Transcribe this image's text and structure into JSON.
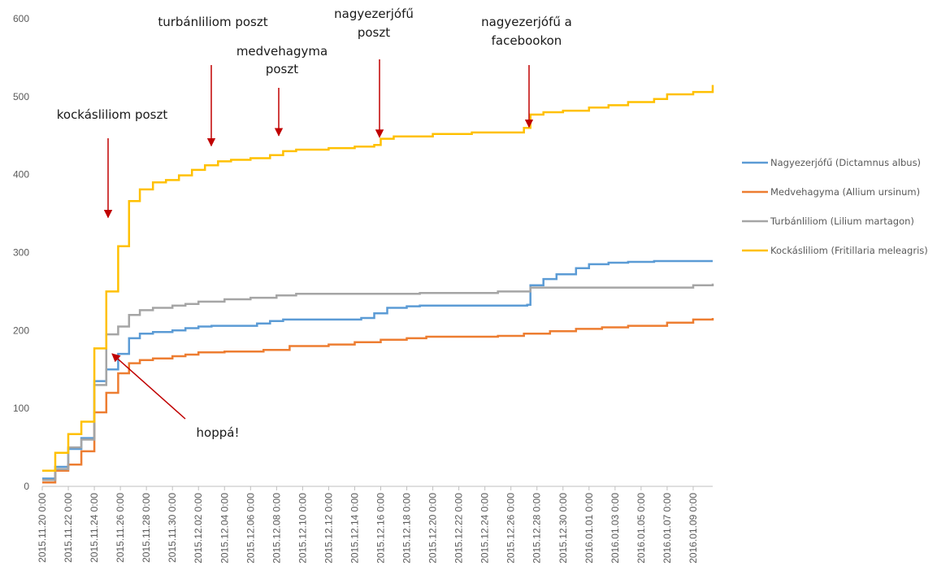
{
  "chart_data": {
    "type": "line",
    "step": true,
    "ylim": [
      0,
      600
    ],
    "yticks": [
      0,
      100,
      200,
      300,
      400,
      500,
      600
    ],
    "xlim": [
      "2015.11.20 0:00",
      "2016.01.10 12:00"
    ],
    "xticks": [
      "2015.11.20 0:00",
      "2015.11.22 0:00",
      "2015.11.24 0:00",
      "2015.11.26 0:00",
      "2015.11.28 0:00",
      "2015.11.30 0:00",
      "2015.12.02 0:00",
      "2015.12.04 0:00",
      "2015.12.06 0:00",
      "2015.12.08 0:00",
      "2015.12.10 0:00",
      "2015.12.12 0:00",
      "2015.12.14 0:00",
      "2015.12.16 0:00",
      "2015.12.18 0:00",
      "2015.12.20 0:00",
      "2015.12.22 0:00",
      "2015.12.24 0:00",
      "2015.12.26 0:00",
      "2015.12.28 0:00",
      "2015.12.30 0:00",
      "2016.01.01 0:00",
      "2016.01.03 0:00",
      "2016.01.05 0:00",
      "2016.01.07 0:00",
      "2016.01.09 0:00"
    ],
    "grid": false,
    "legend_position": "right",
    "series": [
      {
        "name": "Nagyezerjófű (Dictamnus albus)",
        "color": "#5B9BD5",
        "points": [
          [
            "2015.11.20 0:00",
            10
          ],
          [
            "2015.11.21 0:00",
            25
          ],
          [
            "2015.11.22 0:00",
            48
          ],
          [
            "2015.11.23 0:00",
            62
          ],
          [
            "2015.11.24 0:00",
            135
          ],
          [
            "2015.11.24 22:00",
            150
          ],
          [
            "2015.11.25 20:00",
            170
          ],
          [
            "2015.11.26 16:00",
            190
          ],
          [
            "2015.11.27 12:00",
            196
          ],
          [
            "2015.11.28 12:00",
            198
          ],
          [
            "2015.11.30 0:00",
            200
          ],
          [
            "2015.12.01 0:00",
            203
          ],
          [
            "2015.12.02 0:00",
            205
          ],
          [
            "2015.12.03 0:00",
            206
          ],
          [
            "2015.12.05 12:00",
            206
          ],
          [
            "2015.12.06 12:00",
            209
          ],
          [
            "2015.12.07 12:00",
            212
          ],
          [
            "2015.12.08 12:00",
            214
          ],
          [
            "2015.12.14 12:00",
            216
          ],
          [
            "2015.12.15 12:00",
            222
          ],
          [
            "2015.12.16 12:00",
            229
          ],
          [
            "2015.12.18 0:00",
            231
          ],
          [
            "2015.12.19 0:00",
            232
          ],
          [
            "2015.12.27 6:00",
            233
          ],
          [
            "2015.12.27 12:00",
            258
          ],
          [
            "2015.12.28 12:00",
            266
          ],
          [
            "2015.12.29 12:00",
            272
          ],
          [
            "2015.12.31 0:00",
            280
          ],
          [
            "2016.01.01 0:00",
            285
          ],
          [
            "2016.01.02 12:00",
            287
          ],
          [
            "2016.01.04 0:00",
            288
          ],
          [
            "2016.01.06 0:00",
            289
          ],
          [
            "2016.01.10 12:00",
            289
          ]
        ]
      },
      {
        "name": "Medvehagyma (Allium ursinum)",
        "color": "#ED7D31",
        "points": [
          [
            "2015.11.20 0:00",
            5
          ],
          [
            "2015.11.21 0:00",
            20
          ],
          [
            "2015.11.22 0:00",
            28
          ],
          [
            "2015.11.23 0:00",
            45
          ],
          [
            "2015.11.24 0:00",
            95
          ],
          [
            "2015.11.24 22:00",
            120
          ],
          [
            "2015.11.25 20:00",
            145
          ],
          [
            "2015.11.26 16:00",
            158
          ],
          [
            "2015.11.27 12:00",
            162
          ],
          [
            "2015.11.28 12:00",
            164
          ],
          [
            "2015.11.30 0:00",
            167
          ],
          [
            "2015.12.01 0:00",
            169
          ],
          [
            "2015.12.02 0:00",
            172
          ],
          [
            "2015.12.04 0:00",
            173
          ],
          [
            "2015.12.07 0:00",
            175
          ],
          [
            "2015.12.09 0:00",
            180
          ],
          [
            "2015.12.12 0:00",
            182
          ],
          [
            "2015.12.14 0:00",
            185
          ],
          [
            "2015.12.16 0:00",
            188
          ],
          [
            "2015.12.18 0:00",
            190
          ],
          [
            "2015.12.19 12:00",
            192
          ],
          [
            "2015.12.25 0:00",
            193
          ],
          [
            "2015.12.27 0:00",
            196
          ],
          [
            "2015.12.29 0:00",
            199
          ],
          [
            "2015.12.31 0:00",
            202
          ],
          [
            "2016.01.02 0:00",
            204
          ],
          [
            "2016.01.04 0:00",
            206
          ],
          [
            "2016.01.07 0:00",
            210
          ],
          [
            "2016.01.09 0:00",
            214
          ],
          [
            "2016.01.10 12:00",
            216
          ]
        ]
      },
      {
        "name": "Turbánliliom (Lilium martagon)",
        "color": "#A5A5A5",
        "points": [
          [
            "2015.11.20 0:00",
            8
          ],
          [
            "2015.11.21 0:00",
            22
          ],
          [
            "2015.11.22 0:00",
            50
          ],
          [
            "2015.11.23 0:00",
            60
          ],
          [
            "2015.11.24 0:00",
            130
          ],
          [
            "2015.11.24 22:00",
            195
          ],
          [
            "2015.11.25 20:00",
            205
          ],
          [
            "2015.11.26 16:00",
            220
          ],
          [
            "2015.11.27 12:00",
            226
          ],
          [
            "2015.11.28 12:00",
            229
          ],
          [
            "2015.11.30 0:00",
            232
          ],
          [
            "2015.12.01 0:00",
            234
          ],
          [
            "2015.12.02 0:00",
            237
          ],
          [
            "2015.12.04 0:00",
            240
          ],
          [
            "2015.12.06 0:00",
            242
          ],
          [
            "2015.12.08 0:00",
            245
          ],
          [
            "2015.12.09 12:00",
            247
          ],
          [
            "2015.12.19 0:00",
            248
          ],
          [
            "2015.12.25 0:00",
            250
          ],
          [
            "2015.12.27 12:00",
            255
          ],
          [
            "2016.01.09 0:00",
            258
          ],
          [
            "2016.01.10 12:00",
            260
          ]
        ]
      },
      {
        "name": "Kockásliliom (Fritillaria meleagris)",
        "color": "#FFC000",
        "points": [
          [
            "2015.11.20 0:00",
            20
          ],
          [
            "2015.11.21 0:00",
            43
          ],
          [
            "2015.11.22 0:00",
            67
          ],
          [
            "2015.11.23 0:00",
            83
          ],
          [
            "2015.11.24 0:00",
            177
          ],
          [
            "2015.11.24 22:00",
            250
          ],
          [
            "2015.11.25 20:00",
            308
          ],
          [
            "2015.11.26 16:00",
            366
          ],
          [
            "2015.11.27 12:00",
            381
          ],
          [
            "2015.11.28 12:00",
            390
          ],
          [
            "2015.11.29 12:00",
            393
          ],
          [
            "2015.11.30 12:00",
            399
          ],
          [
            "2015.12.01 12:00",
            406
          ],
          [
            "2015.12.02 12:00",
            412
          ],
          [
            "2015.12.03 12:00",
            417
          ],
          [
            "2015.12.04 12:00",
            419
          ],
          [
            "2015.12.06 0:00",
            421
          ],
          [
            "2015.12.07 12:00",
            425
          ],
          [
            "2015.12.08 12:00",
            430
          ],
          [
            "2015.12.09 12:00",
            432
          ],
          [
            "2015.12.12 0:00",
            434
          ],
          [
            "2015.12.14 0:00",
            436
          ],
          [
            "2015.12.15 12:00",
            438
          ],
          [
            "2015.12.16 0:00",
            446
          ],
          [
            "2015.12.17 0:00",
            449
          ],
          [
            "2015.12.20 0:00",
            452
          ],
          [
            "2015.12.23 0:00",
            454
          ],
          [
            "2015.12.27 0:00",
            460
          ],
          [
            "2015.12.27 12:00",
            477
          ],
          [
            "2015.12.28 12:00",
            480
          ],
          [
            "2015.12.30 0:00",
            482
          ],
          [
            "2016.01.01 0:00",
            486
          ],
          [
            "2016.01.02 12:00",
            489
          ],
          [
            "2016.01.04 0:00",
            493
          ],
          [
            "2016.01.06 0:00",
            497
          ],
          [
            "2016.01.07 0:00",
            503
          ],
          [
            "2016.01.09 0:00",
            506
          ],
          [
            "2016.01.10 12:00",
            515
          ]
        ]
      }
    ],
    "annotations": [
      {
        "id": "kockas",
        "lines": [
          "kockásliliom poszt"
        ],
        "x": "2015.11.24 12:00",
        "arrow_to": 345
      },
      {
        "id": "turban",
        "lines": [
          "turbánliliom poszt"
        ],
        "x": "2015.12.03 0:00",
        "arrow_to": 437
      },
      {
        "id": "medve",
        "lines": [
          "medvehagyma",
          "poszt"
        ],
        "x": "2015.12.08 12:00",
        "arrow_to": 450
      },
      {
        "id": "nagyezer",
        "lines": [
          "nagyezerjófű",
          "poszt"
        ],
        "x": "2015.12.15 0:00",
        "arrow_to": 448
      },
      {
        "id": "facebook",
        "lines": [
          "nagyezerjófű a",
          "facebookon"
        ],
        "x": "2015.12.27 12:00",
        "arrow_to": 461
      },
      {
        "id": "hoppa",
        "lines": [
          "hoppá!"
        ],
        "x": "2015.11.25 0:00",
        "arrow_to": 170
      }
    ]
  }
}
